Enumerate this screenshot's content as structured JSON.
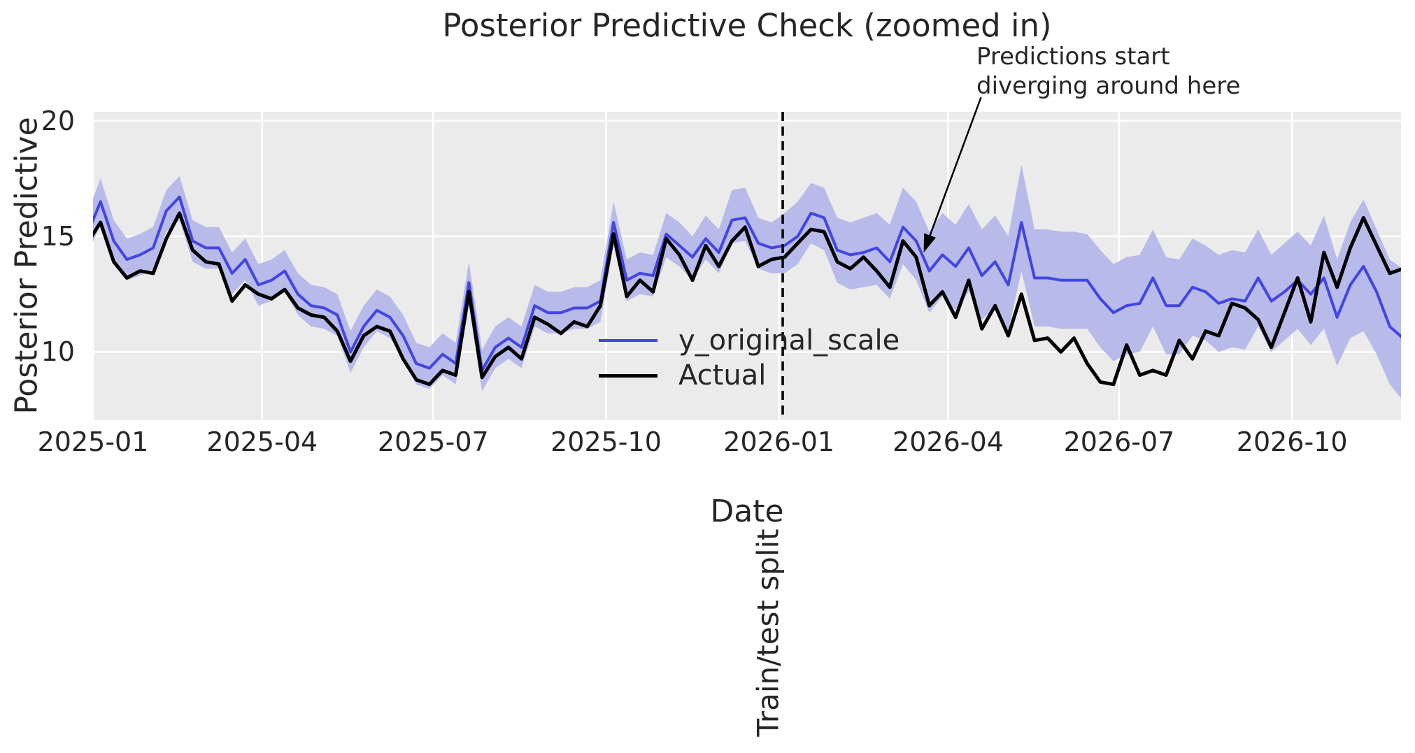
{
  "figure": {
    "title": "Posterior Predictive Check (zoomed in)",
    "xlabel": "Date",
    "ylabel": "Posterior Predictive",
    "split_label": "Train/test split",
    "annotation_text": "Predictions start\ndiverging around here",
    "legend": {
      "items": [
        {
          "label": "y_original_scale"
        },
        {
          "label": "Actual"
        }
      ]
    },
    "colors": {
      "background": "#ffffff",
      "plot_background": "#ebebeb",
      "grid": "#ffffff",
      "predicted_line": "#4245e1",
      "band": "#b8bae9",
      "actual_line": "#000000",
      "split_line": "#000000",
      "annotation_arrow": "#000000",
      "text": "#262626"
    }
  },
  "chart_data": {
    "type": "line",
    "title": "Posterior Predictive Check (zoomed in)",
    "xlabel": "Date",
    "ylabel": "Posterior Predictive",
    "grid": true,
    "legend_position": "inside center-left, frameless",
    "ylim": [
      7.05,
      20.38
    ],
    "xlim": [
      "2025-01-01",
      "2026-11-28"
    ],
    "y_ticks": [
      10,
      15,
      20
    ],
    "x_ticks": [
      {
        "date": "2025-01-01",
        "label": "2025-01"
      },
      {
        "date": "2025-04-01",
        "label": "2025-04"
      },
      {
        "date": "2025-07-01",
        "label": "2025-07"
      },
      {
        "date": "2025-10-01",
        "label": "2025-10"
      },
      {
        "date": "2026-01-01",
        "label": "2026-01"
      },
      {
        "date": "2026-04-01",
        "label": "2026-04"
      },
      {
        "date": "2026-07-01",
        "label": "2026-07"
      },
      {
        "date": "2026-10-01",
        "label": "2026-10"
      }
    ],
    "split_date": "2026-01-03",
    "annotation": {
      "text": "Predictions start\ndiverging around here",
      "arrow_tip_date": "2026-03-19",
      "arrow_tip_value": 14.3
    },
    "dates": [
      "2024-12-29",
      "2025-01-05",
      "2025-01-12",
      "2025-01-19",
      "2025-01-26",
      "2025-02-02",
      "2025-02-09",
      "2025-02-16",
      "2025-02-23",
      "2025-03-02",
      "2025-03-09",
      "2025-03-16",
      "2025-03-23",
      "2025-03-30",
      "2025-04-06",
      "2025-04-13",
      "2025-04-20",
      "2025-04-27",
      "2025-05-04",
      "2025-05-11",
      "2025-05-18",
      "2025-05-25",
      "2025-06-01",
      "2025-06-08",
      "2025-06-15",
      "2025-06-22",
      "2025-06-29",
      "2025-07-06",
      "2025-07-13",
      "2025-07-20",
      "2025-07-27",
      "2025-08-03",
      "2025-08-10",
      "2025-08-17",
      "2025-08-24",
      "2025-08-31",
      "2025-09-07",
      "2025-09-14",
      "2025-09-21",
      "2025-09-28",
      "2025-10-05",
      "2025-10-12",
      "2025-10-19",
      "2025-10-26",
      "2025-11-02",
      "2025-11-09",
      "2025-11-16",
      "2025-11-23",
      "2025-11-30",
      "2025-12-07",
      "2025-12-14",
      "2025-12-21",
      "2025-12-28",
      "2026-01-04",
      "2026-01-11",
      "2026-01-18",
      "2026-01-25",
      "2026-02-01",
      "2026-02-08",
      "2026-02-15",
      "2026-02-22",
      "2026-03-01",
      "2026-03-08",
      "2026-03-15",
      "2026-03-22",
      "2026-03-29",
      "2026-04-05",
      "2026-04-12",
      "2026-04-19",
      "2026-04-26",
      "2026-05-03",
      "2026-05-10",
      "2026-05-17",
      "2026-05-24",
      "2026-05-31",
      "2026-06-07",
      "2026-06-14",
      "2026-06-21",
      "2026-06-28",
      "2026-07-05",
      "2026-07-12",
      "2026-07-19",
      "2026-07-26",
      "2026-08-02",
      "2026-08-09",
      "2026-08-16",
      "2026-08-23",
      "2026-08-30",
      "2026-09-06",
      "2026-09-13",
      "2026-09-20",
      "2026-09-27",
      "2026-10-04",
      "2026-10-11",
      "2026-10-18",
      "2026-10-25",
      "2026-11-01",
      "2026-11-08",
      "2026-11-15",
      "2026-11-22",
      "2026-11-29"
    ],
    "series": [
      {
        "name": "y_original_scale",
        "role": "posterior_predictive_mean",
        "values": [
          15.1,
          16.5,
          14.8,
          14.0,
          14.2,
          14.5,
          16.1,
          16.7,
          14.8,
          14.5,
          14.5,
          13.4,
          14.0,
          12.9,
          13.1,
          13.5,
          12.5,
          12.0,
          11.9,
          11.6,
          10.0,
          11.1,
          11.8,
          11.5,
          10.7,
          9.5,
          9.3,
          9.9,
          9.5,
          13.0,
          9.2,
          10.2,
          10.6,
          10.2,
          12.0,
          11.7,
          11.7,
          11.9,
          11.9,
          12.2,
          15.6,
          13.1,
          13.4,
          13.3,
          15.1,
          14.6,
          14.1,
          14.9,
          14.3,
          15.7,
          15.8,
          14.7,
          14.5,
          14.6,
          15.0,
          16.0,
          15.8,
          14.4,
          14.2,
          14.3,
          14.5,
          13.9,
          15.4,
          14.8,
          13.5,
          14.2,
          13.7,
          14.5,
          13.3,
          13.9,
          12.9,
          15.6,
          13.2,
          13.2,
          13.1,
          13.1,
          13.1,
          12.3,
          11.7,
          12.0,
          12.1,
          13.2,
          12.0,
          12.0,
          12.8,
          12.6,
          12.1,
          12.3,
          12.2,
          13.2,
          12.2,
          12.6,
          13.1,
          12.5,
          13.2,
          11.5,
          12.9,
          13.7,
          12.6,
          11.1,
          10.6
        ]
      },
      {
        "name": "Actual",
        "role": "observed",
        "values": [
          14.7,
          15.6,
          13.9,
          13.2,
          13.5,
          13.4,
          14.9,
          16.0,
          14.4,
          13.9,
          13.8,
          12.2,
          12.9,
          12.5,
          12.3,
          12.7,
          11.9,
          11.6,
          11.5,
          10.9,
          9.6,
          10.7,
          11.1,
          10.9,
          9.7,
          8.8,
          8.6,
          9.2,
          9.0,
          12.6,
          8.9,
          9.8,
          10.2,
          9.7,
          11.5,
          11.2,
          10.8,
          11.3,
          11.1,
          12.0,
          15.1,
          12.4,
          13.1,
          12.6,
          14.9,
          14.2,
          13.1,
          14.6,
          13.7,
          14.8,
          15.4,
          13.7,
          14.0,
          14.1,
          14.7,
          15.3,
          15.2,
          13.9,
          13.6,
          14.1,
          13.5,
          12.8,
          14.8,
          14.1,
          12.0,
          12.6,
          11.5,
          13.1,
          11.0,
          12.0,
          10.7,
          12.5,
          10.5,
          10.6,
          10.0,
          10.6,
          9.5,
          8.7,
          8.6,
          10.3,
          9.0,
          9.2,
          9.0,
          10.5,
          9.7,
          10.9,
          10.7,
          12.1,
          11.9,
          11.4,
          10.2,
          11.7,
          13.2,
          11.3,
          14.3,
          12.8,
          14.5,
          15.8,
          14.6,
          13.4,
          13.6
        ]
      },
      {
        "name": "credible_band",
        "role": "uncertainty_interval",
        "lo": [
          14.2,
          15.5,
          13.9,
          13.1,
          13.3,
          13.6,
          15.2,
          15.7,
          13.9,
          13.6,
          13.6,
          12.5,
          13.1,
          12.0,
          12.2,
          12.6,
          11.6,
          11.1,
          11.0,
          10.7,
          9.1,
          10.2,
          10.9,
          10.6,
          9.8,
          8.6,
          8.4,
          9.0,
          8.6,
          12.0,
          8.3,
          9.3,
          9.7,
          9.3,
          11.1,
          10.8,
          10.8,
          11.0,
          11.0,
          11.3,
          14.6,
          12.2,
          12.5,
          12.4,
          14.1,
          13.7,
          13.1,
          14.0,
          13.4,
          14.7,
          14.8,
          13.6,
          13.4,
          13.4,
          13.8,
          14.7,
          14.4,
          13.0,
          12.7,
          12.8,
          12.9,
          12.3,
          13.8,
          13.1,
          11.7,
          12.4,
          11.8,
          12.6,
          11.4,
          11.9,
          10.9,
          13.5,
          11.1,
          11.1,
          11.0,
          11.0,
          11.0,
          10.2,
          9.6,
          9.9,
          10.0,
          11.1,
          9.9,
          9.9,
          10.7,
          10.5,
          10.0,
          10.2,
          10.1,
          11.1,
          10.0,
          10.5,
          11.0,
          10.3,
          11.0,
          9.4,
          10.6,
          10.9,
          9.9,
          8.6,
          7.9
        ],
        "hi": [
          16.0,
          17.5,
          15.7,
          14.9,
          15.1,
          15.4,
          17.0,
          17.6,
          15.7,
          15.4,
          15.4,
          14.3,
          14.9,
          13.8,
          14.0,
          14.4,
          13.4,
          12.9,
          12.8,
          12.5,
          10.9,
          12.0,
          12.7,
          12.4,
          11.6,
          10.4,
          10.2,
          10.8,
          10.4,
          13.9,
          10.1,
          11.1,
          11.5,
          11.1,
          12.9,
          12.6,
          12.6,
          12.8,
          12.8,
          13.1,
          16.5,
          14.0,
          14.3,
          14.2,
          16.0,
          15.6,
          15.0,
          15.9,
          15.3,
          17.0,
          17.1,
          15.8,
          15.6,
          16.0,
          16.5,
          17.3,
          17.1,
          15.8,
          15.6,
          15.8,
          16.0,
          15.5,
          17.1,
          16.5,
          15.2,
          16.0,
          15.5,
          16.4,
          15.3,
          15.9,
          15.0,
          18.1,
          15.3,
          15.3,
          15.2,
          15.2,
          15.1,
          14.4,
          13.8,
          14.1,
          14.2,
          15.3,
          14.1,
          14.0,
          14.9,
          14.6,
          14.2,
          14.4,
          14.3,
          15.3,
          14.2,
          14.7,
          15.2,
          14.6,
          15.9,
          14.0,
          15.6,
          16.6,
          15.3,
          14.0,
          13.6
        ]
      }
    ]
  }
}
